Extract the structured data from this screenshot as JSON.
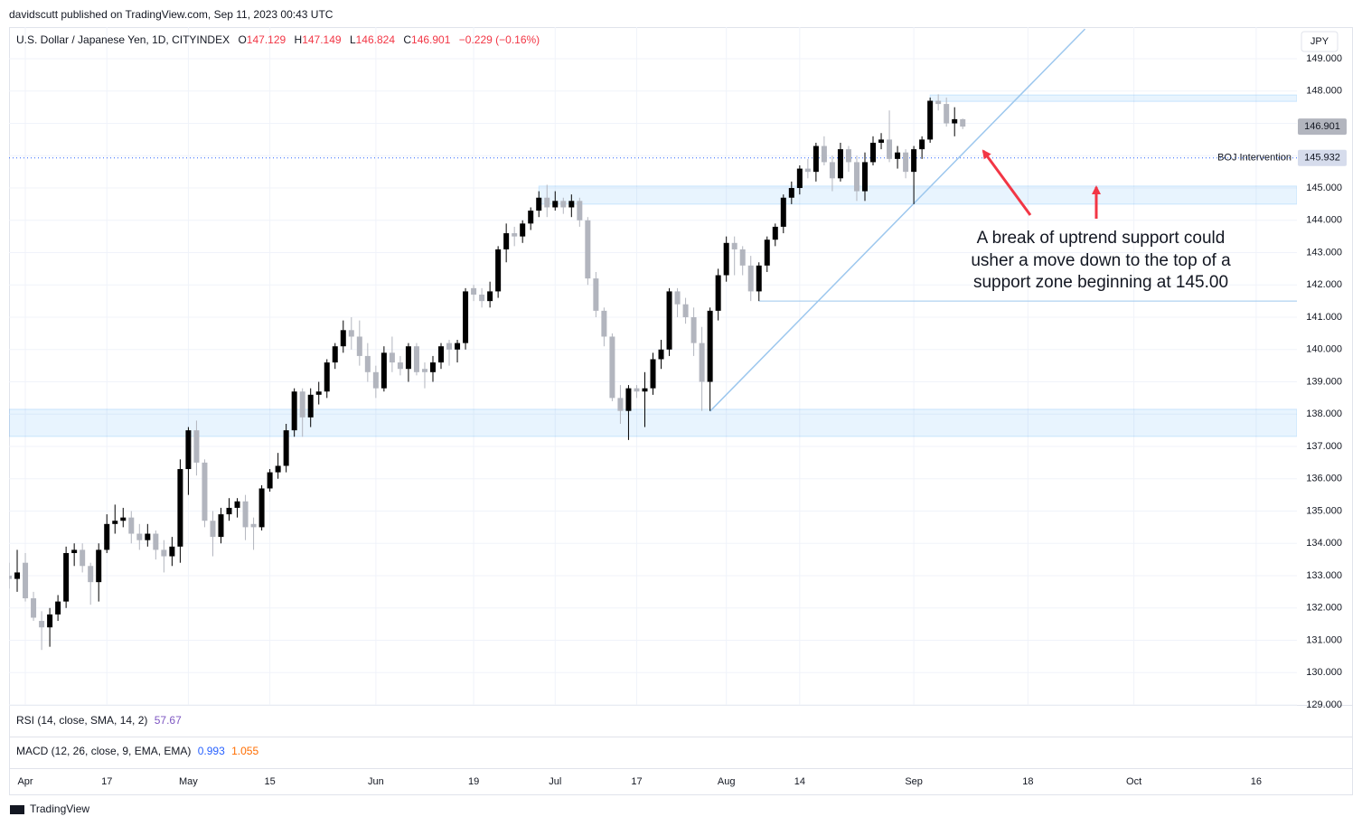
{
  "publisher": "davidscutt published on TradingView.com, Sep 11, 2023 00:43 UTC",
  "brand": "TradingView",
  "currency": "JPY",
  "chart_data": {
    "type": "candlestick",
    "symbol": "U.S. Dollar / Japanese Yen, 1D, CITYINDEX",
    "ohlc_labels": [
      "O",
      "H",
      "L",
      "C"
    ],
    "change": "−0.229 (−0.16%)",
    "up_color": "#000000",
    "down_color": "#b2b5be",
    "x": [
      -2,
      -1,
      0,
      1,
      2,
      3,
      4,
      5,
      6,
      7,
      8,
      9,
      10,
      11,
      12,
      13,
      14,
      15,
      16,
      17,
      18,
      19,
      20,
      21,
      22,
      23,
      24,
      25,
      26,
      27,
      28,
      29,
      30,
      31,
      32,
      33,
      34,
      35,
      36,
      37,
      38,
      39,
      40,
      41,
      42,
      43,
      44,
      45,
      46,
      47,
      48,
      49,
      50,
      51,
      52,
      53,
      54,
      55,
      56,
      57,
      58,
      59,
      60,
      61,
      62,
      63,
      64,
      65,
      66,
      67,
      68,
      69,
      70,
      71,
      72,
      73,
      74,
      75,
      76,
      77,
      78,
      79,
      80,
      81,
      82,
      83,
      84,
      85,
      86,
      87,
      88,
      89,
      90,
      91,
      92,
      93,
      94,
      95,
      96,
      97,
      98,
      99,
      100,
      101,
      102,
      103,
      104,
      105,
      106,
      107,
      108,
      109,
      110,
      111,
      112,
      113,
      114,
      115
    ],
    "candles": [
      [
        133.0,
        133.4,
        132.6,
        132.9
      ],
      [
        132.9,
        133.8,
        132.5,
        133.1
      ],
      [
        133.4,
        133.7,
        132.2,
        132.3
      ],
      [
        132.3,
        132.5,
        131.6,
        131.7
      ],
      [
        131.6,
        131.9,
        130.7,
        131.4
      ],
      [
        131.4,
        132.0,
        130.8,
        131.8
      ],
      [
        131.8,
        132.4,
        131.6,
        132.2
      ],
      [
        132.2,
        133.9,
        132.0,
        133.7
      ],
      [
        133.7,
        134.0,
        133.3,
        133.8
      ],
      [
        133.8,
        134.0,
        133.1,
        133.3
      ],
      [
        133.3,
        133.4,
        132.1,
        132.8
      ],
      [
        132.8,
        134.0,
        132.2,
        133.8
      ],
      [
        133.8,
        134.9,
        133.7,
        134.6
      ],
      [
        134.6,
        135.2,
        134.3,
        134.7
      ],
      [
        134.7,
        135.1,
        134.5,
        134.8
      ],
      [
        134.8,
        135.0,
        134.0,
        134.3
      ],
      [
        134.3,
        134.6,
        133.8,
        134.1
      ],
      [
        134.1,
        134.6,
        133.9,
        134.3
      ],
      [
        134.3,
        134.4,
        133.5,
        133.8
      ],
      [
        133.8,
        134.1,
        133.1,
        133.6
      ],
      [
        133.6,
        134.2,
        133.3,
        133.9
      ],
      [
        133.9,
        136.6,
        133.4,
        136.3
      ],
      [
        136.3,
        137.6,
        135.5,
        137.5
      ],
      [
        137.5,
        137.8,
        136.1,
        136.5
      ],
      [
        136.5,
        136.6,
        134.5,
        134.7
      ],
      [
        134.7,
        135.0,
        133.6,
        134.2
      ],
      [
        134.2,
        135.1,
        134.0,
        134.9
      ],
      [
        134.9,
        135.4,
        134.7,
        135.1
      ],
      [
        135.1,
        135.4,
        134.8,
        135.3
      ],
      [
        135.3,
        135.5,
        134.1,
        134.5
      ],
      [
        134.6,
        134.8,
        133.8,
        134.5
      ],
      [
        134.5,
        135.8,
        134.4,
        135.7
      ],
      [
        135.7,
        136.3,
        135.6,
        136.2
      ],
      [
        136.2,
        136.8,
        136.0,
        136.4
      ],
      [
        136.4,
        137.7,
        136.2,
        137.5
      ],
      [
        137.5,
        138.8,
        137.3,
        138.7
      ],
      [
        138.7,
        138.8,
        137.3,
        137.9
      ],
      [
        137.9,
        138.8,
        137.6,
        138.6
      ],
      [
        138.6,
        139.0,
        138.3,
        138.7
      ],
      [
        138.7,
        139.7,
        138.5,
        139.6
      ],
      [
        139.6,
        140.2,
        139.4,
        140.1
      ],
      [
        140.1,
        140.9,
        139.9,
        140.6
      ],
      [
        140.6,
        141.0,
        140.0,
        140.4
      ],
      [
        140.4,
        140.9,
        139.5,
        139.8
      ],
      [
        139.8,
        140.2,
        139.0,
        139.3
      ],
      [
        139.3,
        139.5,
        138.5,
        138.8
      ],
      [
        138.8,
        140.1,
        138.7,
        139.9
      ],
      [
        139.9,
        140.4,
        139.3,
        139.6
      ],
      [
        139.6,
        139.8,
        139.2,
        139.4
      ],
      [
        139.4,
        140.2,
        139.0,
        140.1
      ],
      [
        140.1,
        140.2,
        139.2,
        139.3
      ],
      [
        139.4,
        139.6,
        138.8,
        139.3
      ],
      [
        139.3,
        139.8,
        139.0,
        139.6
      ],
      [
        139.6,
        140.2,
        139.4,
        140.1
      ],
      [
        140.2,
        140.3,
        139.5,
        140.0
      ],
      [
        140.0,
        140.3,
        139.6,
        140.2
      ],
      [
        140.2,
        141.9,
        140.0,
        141.8
      ],
      [
        141.9,
        142.0,
        141.5,
        141.7
      ],
      [
        141.7,
        141.9,
        141.3,
        141.5
      ],
      [
        141.5,
        142.1,
        141.3,
        141.8
      ],
      [
        141.8,
        143.2,
        141.6,
        143.1
      ],
      [
        143.1,
        143.9,
        142.7,
        143.6
      ],
      [
        143.6,
        143.8,
        143.2,
        143.5
      ],
      [
        143.5,
        144.0,
        143.3,
        143.9
      ],
      [
        143.9,
        144.4,
        143.7,
        144.3
      ],
      [
        144.3,
        144.9,
        144.1,
        144.7
      ],
      [
        144.7,
        145.1,
        144.1,
        144.4
      ],
      [
        144.4,
        144.9,
        144.3,
        144.6
      ],
      [
        144.6,
        144.7,
        144.2,
        144.4
      ],
      [
        144.4,
        144.8,
        144.1,
        144.6
      ],
      [
        144.6,
        144.7,
        143.8,
        144.0
      ],
      [
        144.0,
        144.1,
        142.0,
        142.2
      ],
      [
        142.2,
        142.4,
        141.0,
        141.2
      ],
      [
        141.2,
        141.3,
        140.1,
        140.4
      ],
      [
        140.4,
        140.5,
        138.4,
        138.5
      ],
      [
        138.5,
        138.9,
        137.7,
        138.1
      ],
      [
        138.1,
        138.9,
        137.2,
        138.8
      ],
      [
        138.8,
        138.9,
        138.5,
        138.7
      ],
      [
        138.7,
        139.3,
        137.6,
        138.8
      ],
      [
        138.8,
        139.9,
        138.6,
        139.7
      ],
      [
        139.7,
        140.3,
        139.4,
        140.0
      ],
      [
        140.0,
        141.9,
        139.8,
        141.8
      ],
      [
        141.8,
        141.9,
        141.0,
        141.4
      ],
      [
        141.4,
        141.6,
        140.8,
        141.0
      ],
      [
        141.0,
        141.3,
        139.8,
        140.2
      ],
      [
        140.2,
        140.7,
        138.1,
        139.0
      ],
      [
        139.0,
        141.3,
        138.1,
        141.2
      ],
      [
        141.2,
        142.5,
        140.9,
        142.3
      ],
      [
        142.3,
        143.5,
        142.1,
        143.3
      ],
      [
        143.3,
        143.5,
        142.3,
        143.1
      ],
      [
        143.1,
        143.2,
        142.3,
        142.6
      ],
      [
        142.6,
        142.9,
        141.5,
        141.8
      ],
      [
        141.8,
        142.7,
        141.5,
        142.6
      ],
      [
        142.6,
        143.5,
        142.4,
        143.4
      ],
      [
        143.4,
        143.9,
        143.2,
        143.8
      ],
      [
        143.8,
        144.8,
        143.6,
        144.7
      ],
      [
        144.7,
        145.2,
        144.5,
        145.0
      ],
      [
        145.0,
        145.7,
        144.8,
        145.6
      ],
      [
        145.6,
        145.9,
        145.3,
        145.5
      ],
      [
        145.5,
        146.4,
        145.2,
        146.3
      ],
      [
        146.3,
        146.6,
        145.7,
        145.8
      ],
      [
        145.8,
        146.0,
        144.9,
        145.3
      ],
      [
        145.3,
        146.4,
        145.2,
        146.2
      ],
      [
        146.2,
        146.3,
        145.5,
        145.8
      ],
      [
        145.8,
        146.0,
        144.6,
        144.9
      ],
      [
        144.9,
        146.1,
        144.6,
        145.8
      ],
      [
        145.8,
        146.6,
        145.7,
        146.4
      ],
      [
        146.4,
        146.7,
        146.2,
        146.5
      ],
      [
        146.5,
        147.4,
        145.8,
        145.9
      ],
      [
        145.9,
        146.3,
        145.6,
        146.1
      ],
      [
        146.1,
        146.2,
        145.3,
        145.5
      ],
      [
        145.5,
        146.3,
        144.5,
        146.2
      ],
      [
        146.2,
        146.6,
        145.9,
        146.5
      ],
      [
        146.5,
        147.8,
        146.4,
        147.7
      ],
      [
        147.7,
        147.9,
        147.4,
        147.6
      ],
      [
        147.6,
        147.8,
        146.9,
        147.0
      ],
      [
        147.0,
        147.5,
        146.6,
        147.13
      ],
      [
        147.129,
        147.149,
        146.824,
        146.901
      ]
    ],
    "xlim": [
      -2,
      156
    ],
    "xticks": [
      {
        "value": 0,
        "label": "Apr"
      },
      {
        "value": 10,
        "label": "17"
      },
      {
        "value": 20,
        "label": "May"
      },
      {
        "value": 30,
        "label": "15"
      },
      {
        "value": 43,
        "label": "Jun"
      },
      {
        "value": 55,
        "label": "19"
      },
      {
        "value": 65,
        "label": "Jul"
      },
      {
        "value": 75,
        "label": "17"
      },
      {
        "value": 86,
        "label": "Aug"
      },
      {
        "value": 95,
        "label": "14"
      },
      {
        "value": 109,
        "label": "Sep"
      },
      {
        "value": 123,
        "label": "18"
      },
      {
        "value": 136,
        "label": "Oct"
      },
      {
        "value": 151,
        "label": "16"
      }
    ],
    "ylim": [
      129,
      149.98
    ],
    "yticks": [
      {
        "value": 129,
        "label": "129.000"
      },
      {
        "value": 130,
        "label": "130.000"
      },
      {
        "value": 131,
        "label": "131.000"
      },
      {
        "value": 132,
        "label": "132.000"
      },
      {
        "value": 133,
        "label": "133.000"
      },
      {
        "value": 134,
        "label": "134.000"
      },
      {
        "value": 135,
        "label": "135.000"
      },
      {
        "value": 136,
        "label": "136.000"
      },
      {
        "value": 137,
        "label": "137.000"
      },
      {
        "value": 138,
        "label": "138.000"
      },
      {
        "value": 139,
        "label": "139.000"
      },
      {
        "value": 140,
        "label": "140.000"
      },
      {
        "value": 141,
        "label": "141.000"
      },
      {
        "value": 142,
        "label": "142.000"
      },
      {
        "value": 143,
        "label": "143.000"
      },
      {
        "value": 144,
        "label": "144.000"
      },
      {
        "value": 145,
        "label": "145.000"
      },
      {
        "value": 146,
        "label": "146.000"
      },
      {
        "value": 147,
        "label": "147.000"
      },
      {
        "value": 148,
        "label": "148.000"
      },
      {
        "value": 149,
        "label": "149.000"
      }
    ],
    "grid": true,
    "zones": [
      {
        "from": 111,
        "top": 147.88,
        "bottom": 147.68
      },
      {
        "from": 63,
        "top": 145.06,
        "bottom": 144.5
      },
      {
        "from": -2,
        "top": 138.15,
        "bottom": 137.31
      }
    ],
    "trendline": {
      "x": [
        84,
        130
      ],
      "y": [
        138.09,
        149.92
      ]
    },
    "support_line": {
      "from": 90,
      "price": 141.5
    },
    "boj": {
      "label": "BOJ Intervention",
      "price": 145.932
    },
    "annotation": [
      "A break of uptrend support could",
      "usher a move down to the top of a",
      "support zone beginning at 145.00"
    ],
    "rsi": {
      "label": "RSI (14, close, SMA, 14, 2)",
      "value": 57.67
    },
    "macd": {
      "label": "MACD (12, 26, close, 9, EMA, EMA)",
      "values": [
        0.993,
        1.055
      ]
    }
  }
}
